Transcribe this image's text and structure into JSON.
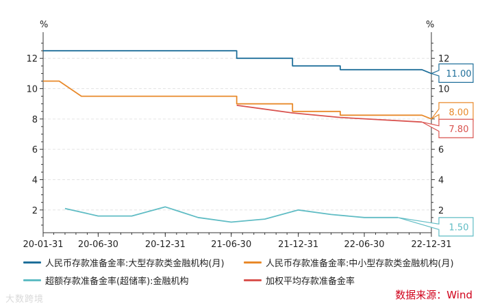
{
  "chart_data": {
    "type": "line",
    "y_unit_left": "%",
    "y_unit_right": "%",
    "ylim": [
      0.5,
      13.5
    ],
    "y_ticks": [
      2,
      4,
      6,
      8,
      10,
      12
    ],
    "x_tick_labels": [
      "20-01-31",
      "20-06-30",
      "20-12-31",
      "21-06-30",
      "21-12-31",
      "22-06-30",
      "22-12-31"
    ],
    "x_tick_dates": [
      "2020-01-31",
      "2020-06-30",
      "2020-12-31",
      "2021-06-30",
      "2021-12-31",
      "2022-06-30",
      "2022-12-31"
    ],
    "xlim": [
      "2020-01-31",
      "2022-12-31"
    ],
    "grid": true,
    "legend_position": "bottom",
    "series": [
      {
        "name": "人民币存款准备金率:大型存款类金融机构(月)",
        "color": "#1f6f9a",
        "step": true,
        "points": [
          [
            "2020-01-31",
            12.5
          ],
          [
            "2021-07-15",
            12.5
          ],
          [
            "2021-07-15",
            12.0
          ],
          [
            "2021-12-15",
            12.0
          ],
          [
            "2021-12-15",
            11.5
          ],
          [
            "2022-04-25",
            11.5
          ],
          [
            "2022-04-25",
            11.25
          ],
          [
            "2022-12-05",
            11.25
          ],
          [
            "2022-12-31",
            11.0
          ]
        ],
        "end_label": "11.00"
      },
      {
        "name": "人民币存款准备金率:中小型存款类金融机构(月)",
        "color": "#e8892a",
        "step": true,
        "points": [
          [
            "2020-01-31",
            10.5
          ],
          [
            "2020-03-15",
            10.5
          ],
          [
            "2020-05-15",
            9.5
          ],
          [
            "2021-07-15",
            9.5
          ],
          [
            "2021-07-15",
            9.0
          ],
          [
            "2021-12-15",
            9.0
          ],
          [
            "2021-12-15",
            8.5
          ],
          [
            "2022-04-25",
            8.5
          ],
          [
            "2022-04-25",
            8.25
          ],
          [
            "2022-12-05",
            8.25
          ],
          [
            "2022-12-31",
            8.0
          ]
        ],
        "end_label": "8.00"
      },
      {
        "name": "超额存款准备金率(超储率):金融机构",
        "color": "#5fbcc4",
        "step": false,
        "points": [
          [
            "2020-03-31",
            2.1
          ],
          [
            "2020-06-30",
            1.6
          ],
          [
            "2020-09-30",
            1.6
          ],
          [
            "2020-12-31",
            2.2
          ],
          [
            "2021-03-31",
            1.5
          ],
          [
            "2021-06-30",
            1.2
          ],
          [
            "2021-09-30",
            1.4
          ],
          [
            "2021-12-31",
            2.0
          ],
          [
            "2022-03-31",
            1.7
          ],
          [
            "2022-06-30",
            1.5
          ],
          [
            "2022-09-30",
            1.5
          ]
        ],
        "end_label": "1.50"
      },
      {
        "name": "加权平均存款准备金率",
        "color": "#d9534f",
        "step": false,
        "points": [
          [
            "2021-07-15",
            8.9
          ],
          [
            "2021-12-15",
            8.4
          ],
          [
            "2022-04-25",
            8.1
          ],
          [
            "2022-12-05",
            7.8
          ]
        ],
        "end_label": "7.80"
      }
    ]
  },
  "source": "数据来源：Wind",
  "watermark": "大数跨境"
}
